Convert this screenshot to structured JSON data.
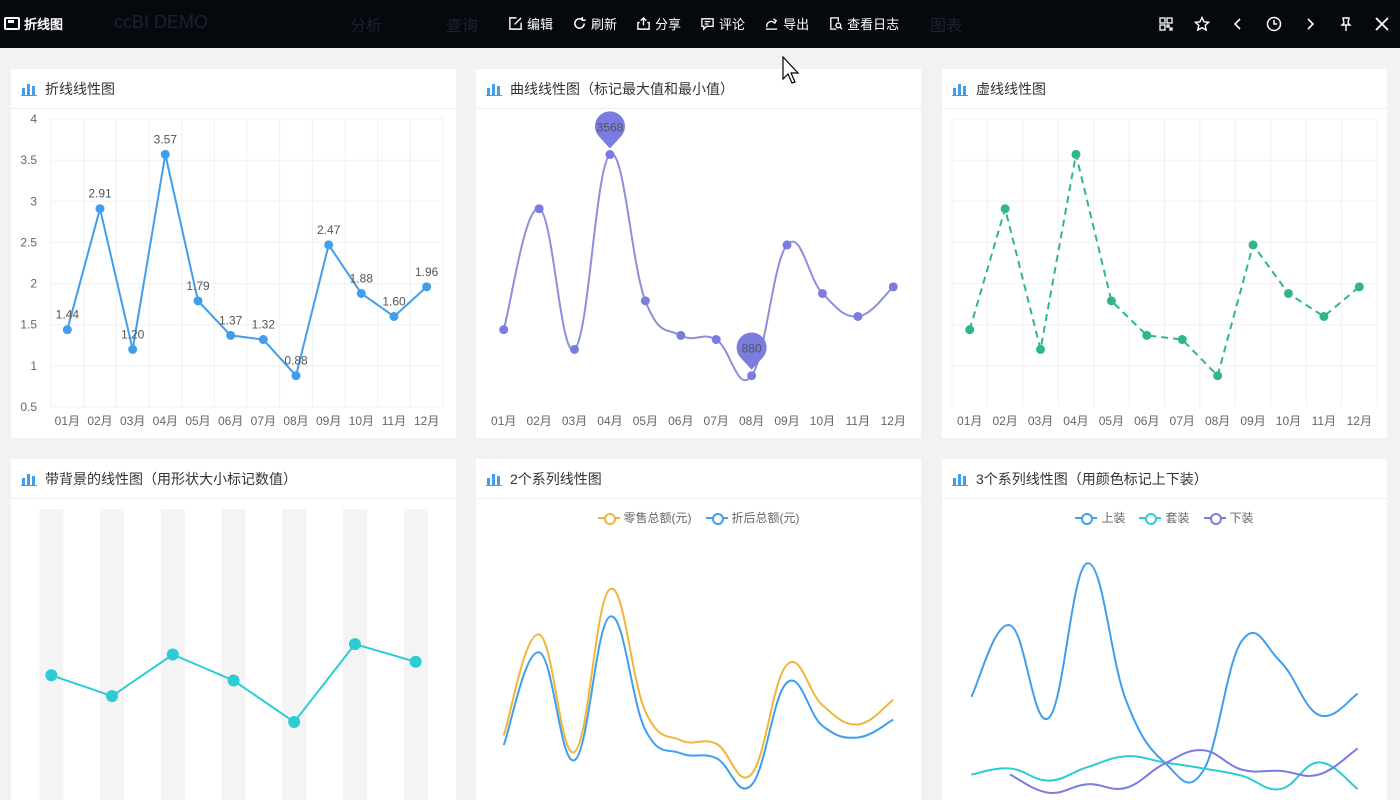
{
  "app": {
    "tab_title": "折线图",
    "ghost_title": "ccBI DEMO",
    "ghost_tab1": "分析",
    "ghost_tab2": "查询",
    "ghost_tab3": "图表"
  },
  "toolbar": {
    "actions": [
      {
        "label": "编辑",
        "icon": "edit-icon"
      },
      {
        "label": "刷新",
        "icon": "refresh-icon"
      },
      {
        "label": "分享",
        "icon": "share-icon"
      },
      {
        "label": "评论",
        "icon": "comment-icon"
      },
      {
        "label": "导出",
        "icon": "export-icon"
      },
      {
        "label": "查看日志",
        "icon": "log-icon"
      }
    ],
    "right_icons": [
      "grid-icon",
      "star-icon",
      "chevron-left-icon",
      "clock-icon",
      "chevron-right-icon",
      "pin-icon",
      "close-icon"
    ]
  },
  "colors": {
    "blue": "#409eec",
    "purple": "#7a7ce0",
    "curve_purple": "#8c8fdc",
    "green": "#2fb68e",
    "teal": "#2dcbd3",
    "orange": "#f0b53c",
    "bars_bg": "#f4f4f4"
  },
  "panels": {
    "p1": {
      "title": "折线线性图"
    },
    "p2": {
      "title": "曲线线性图（标记最大值和最小值）"
    },
    "p3": {
      "title": "虚线线性图"
    },
    "p4": {
      "title": "带背景的线性图（用形状大小标记数值）"
    },
    "p5": {
      "title": "2个系列线性图"
    },
    "p6": {
      "title": "3个系列线性图（用颜色标记上下装）"
    }
  },
  "chart_data": [
    {
      "type": "line",
      "title": "折线线性图",
      "categories": [
        "01月",
        "02月",
        "03月",
        "04月",
        "05月",
        "06月",
        "07月",
        "08月",
        "09月",
        "10月",
        "11月",
        "12月"
      ],
      "values": [
        1.44,
        2.91,
        1.2,
        3.57,
        1.79,
        1.37,
        1.32,
        0.88,
        2.47,
        1.88,
        1.6,
        1.96
      ],
      "labels": [
        "1.44",
        "2.91",
        "1.20",
        "3.57",
        "1.79",
        "1.37",
        "1.32",
        "0.88",
        "2.47",
        "1.88",
        "1.60",
        "1.96"
      ],
      "yticks": [
        "0.5",
        "1",
        "1.5",
        "2",
        "2.5",
        "3",
        "3.5",
        "4"
      ],
      "ylim": [
        0.5,
        4
      ],
      "grid": true
    },
    {
      "type": "line",
      "title": "曲线线性图（标记最大值和最小值）",
      "smooth": true,
      "categories": [
        "01月",
        "02月",
        "03月",
        "04月",
        "05月",
        "06月",
        "07月",
        "08月",
        "09月",
        "10月",
        "11月",
        "12月"
      ],
      "values": [
        1440,
        2910,
        1200,
        3568,
        1790,
        1370,
        1320,
        880,
        2470,
        1880,
        1600,
        1960
      ],
      "max_marker": "3568",
      "min_marker": "880",
      "ylim": [
        500,
        4000
      ]
    },
    {
      "type": "line",
      "title": "虚线线性图",
      "dashed": true,
      "categories": [
        "01月",
        "02月",
        "03月",
        "04月",
        "05月",
        "06月",
        "07月",
        "08月",
        "09月",
        "10月",
        "11月",
        "12月"
      ],
      "values": [
        1.44,
        2.91,
        1.2,
        3.57,
        1.79,
        1.37,
        1.32,
        0.88,
        2.47,
        1.88,
        1.6,
        1.96
      ],
      "ylim": [
        0.5,
        4
      ],
      "grid": true
    },
    {
      "type": "line",
      "title": "带背景的线性图（用形状大小标记数值）",
      "values": [
        1.2,
        1.0,
        1.4,
        1.15,
        0.75,
        1.5,
        1.33
      ],
      "ylim": [
        0,
        2.8
      ],
      "background_bars": true
    },
    {
      "type": "line",
      "title": "2个系列线性图",
      "smooth": true,
      "series": [
        {
          "name": "零售总额(元)",
          "values": [
            1.44,
            2.91,
            1.2,
            3.57,
            1.79,
            1.37,
            1.32,
            0.88,
            2.47,
            1.88,
            1.6,
            1.96
          ]
        },
        {
          "name": "折后总额(元)",
          "values": [
            1.3,
            2.65,
            1.08,
            3.17,
            1.52,
            1.18,
            1.11,
            0.72,
            2.21,
            1.58,
            1.41,
            1.67
          ]
        }
      ],
      "ylim": [
        0.5,
        4.3
      ],
      "legend": "top-center"
    },
    {
      "type": "line",
      "title": "3个系列线性图（用颜色标记上下装）",
      "smooth": true,
      "series": [
        {
          "name": "上装",
          "values": [
            1.9,
            3.08,
            1.55,
            4.1,
            1.85,
            0.82,
            0.68,
            2.82,
            2.48,
            1.6,
            1.95
          ]
        },
        {
          "name": "套装",
          "values": [
            0.62,
            0.72,
            0.52,
            0.74,
            0.92,
            0.82,
            0.72,
            0.6,
            0.38,
            0.82,
            0.38
          ]
        },
        {
          "name": "下装",
          "values": [
            null,
            0.62,
            0.32,
            0.46,
            0.4,
            0.8,
            1.02,
            0.7,
            0.68,
            0.62,
            1.05
          ]
        }
      ],
      "ylim": [
        0.2,
        4.5
      ],
      "legend": "top-center"
    }
  ]
}
